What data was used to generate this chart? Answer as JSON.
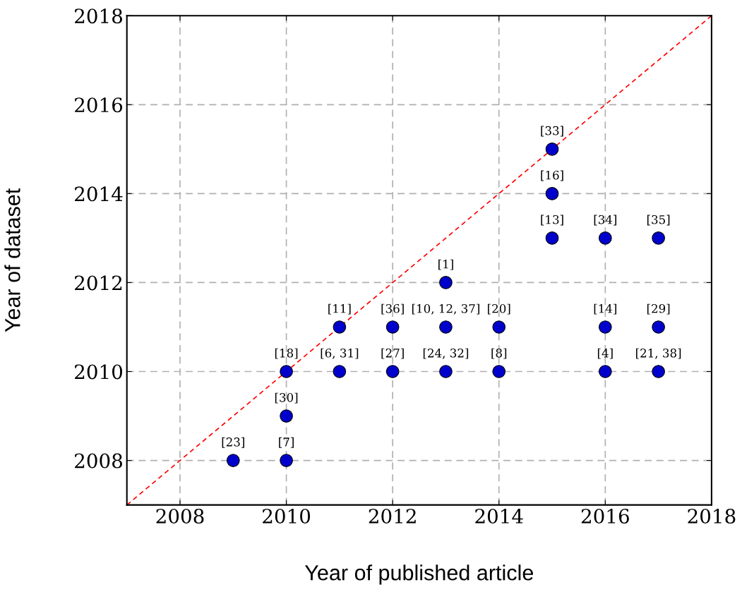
{
  "chart_data": {
    "type": "scatter",
    "xlabel": "Year of published article",
    "ylabel": "Year of dataset",
    "xlim": [
      2007,
      2018
    ],
    "ylim": [
      2007,
      2018
    ],
    "xticks": [
      2008,
      2010,
      2012,
      2014,
      2016,
      2018
    ],
    "yticks": [
      2008,
      2010,
      2012,
      2014,
      2016,
      2018
    ],
    "grid": true,
    "marker": "circle",
    "legend": false,
    "series": [
      {
        "color": "#0000cc",
        "x": [
          2009,
          2010,
          2010,
          2010,
          2011,
          2011,
          2012,
          2012,
          2013,
          2013,
          2013,
          2014,
          2014,
          2015,
          2015,
          2015,
          2016,
          2016,
          2016,
          2017,
          2017,
          2017
        ],
        "values": [
          2008,
          2008,
          2009,
          2010,
          2010,
          2011,
          2010,
          2011,
          2010,
          2011,
          2012,
          2010,
          2011,
          2013,
          2014,
          2015,
          2010,
          2011,
          2013,
          2010,
          2011,
          2013
        ]
      },
      {
        "type": "line",
        "color": "#ff0000",
        "line_style": "dashed",
        "marker": "none",
        "x": [
          2007,
          2018
        ],
        "values": [
          2007,
          2018
        ]
      }
    ],
    "annotations": [
      {
        "text": "[23]",
        "x": 2009,
        "y": 2008
      },
      {
        "text": "[7]",
        "x": 2010,
        "y": 2008
      },
      {
        "text": "[30]",
        "x": 2010,
        "y": 2009
      },
      {
        "text": "[18]",
        "x": 2010,
        "y": 2010
      },
      {
        "text": "[6, 31]",
        "x": 2011,
        "y": 2010
      },
      {
        "text": "[11]",
        "x": 2011,
        "y": 2011
      },
      {
        "text": "[27]",
        "x": 2012,
        "y": 2010
      },
      {
        "text": "[36]",
        "x": 2012,
        "y": 2011
      },
      {
        "text": "[24, 32]",
        "x": 2013,
        "y": 2010
      },
      {
        "text": "[10, 12, 37]",
        "x": 2013,
        "y": 2011
      },
      {
        "text": "[1]",
        "x": 2013,
        "y": 2012
      },
      {
        "text": "[8]",
        "x": 2014,
        "y": 2010
      },
      {
        "text": "[20]",
        "x": 2014,
        "y": 2011
      },
      {
        "text": "[13]",
        "x": 2015,
        "y": 2013
      },
      {
        "text": "[16]",
        "x": 2015,
        "y": 2014
      },
      {
        "text": "[33]",
        "x": 2015,
        "y": 2015
      },
      {
        "text": "[4]",
        "x": 2016,
        "y": 2010
      },
      {
        "text": "[14]",
        "x": 2016,
        "y": 2011
      },
      {
        "text": "[34]",
        "x": 2016,
        "y": 2013
      },
      {
        "text": "[21, 38]",
        "x": 2017,
        "y": 2010
      },
      {
        "text": "[29]",
        "x": 2017,
        "y": 2011
      },
      {
        "text": "[35]",
        "x": 2017,
        "y": 2013
      }
    ]
  }
}
